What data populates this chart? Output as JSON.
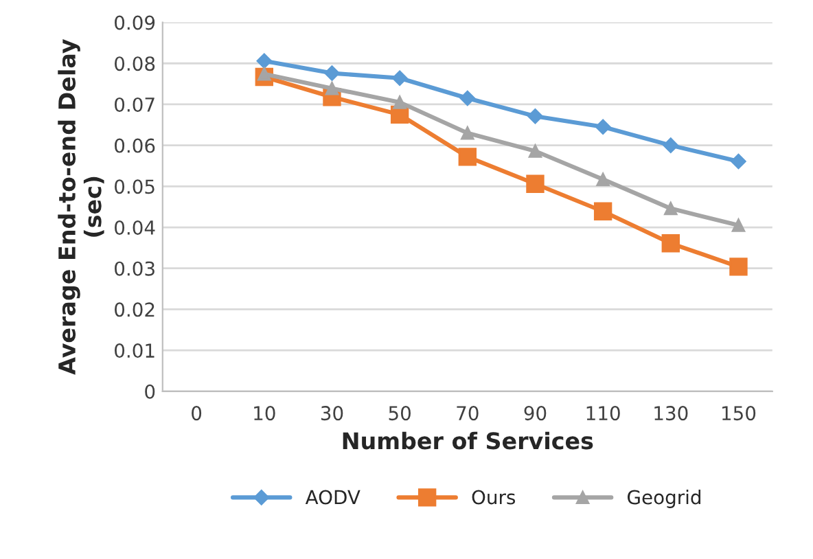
{
  "chart_data": {
    "type": "line",
    "xlabel": "Number of Services",
    "ylabel": "Average End-to-end Delay\n(sec)",
    "categories": [
      "0",
      "10",
      "30",
      "50",
      "70",
      "90",
      "110",
      "130",
      "150"
    ],
    "series": [
      {
        "name": "AODV",
        "color": "#5b9bd5",
        "marker": "diamond",
        "values": [
          null,
          0.0806,
          0.0776,
          0.0764,
          0.0715,
          0.0671,
          0.0645,
          0.06,
          0.0561
        ]
      },
      {
        "name": "Ours",
        "color": "#ed7d31",
        "marker": "square",
        "values": [
          null,
          0.0767,
          0.0718,
          0.0675,
          0.0572,
          0.0506,
          0.0439,
          0.0361,
          0.0304
        ]
      },
      {
        "name": "Geogrid",
        "color": "#a5a5a5",
        "marker": "triangle",
        "values": [
          null,
          0.0774,
          0.0739,
          0.0705,
          0.063,
          0.0586,
          0.0517,
          0.0446,
          0.0405
        ]
      }
    ],
    "ylim": [
      0,
      0.09
    ],
    "yticks": [
      0,
      0.01,
      0.02,
      0.03,
      0.04,
      0.05,
      0.06,
      0.07,
      0.08,
      0.09
    ],
    "grid": "y",
    "legend": "bottom",
    "line_style": "solid"
  }
}
